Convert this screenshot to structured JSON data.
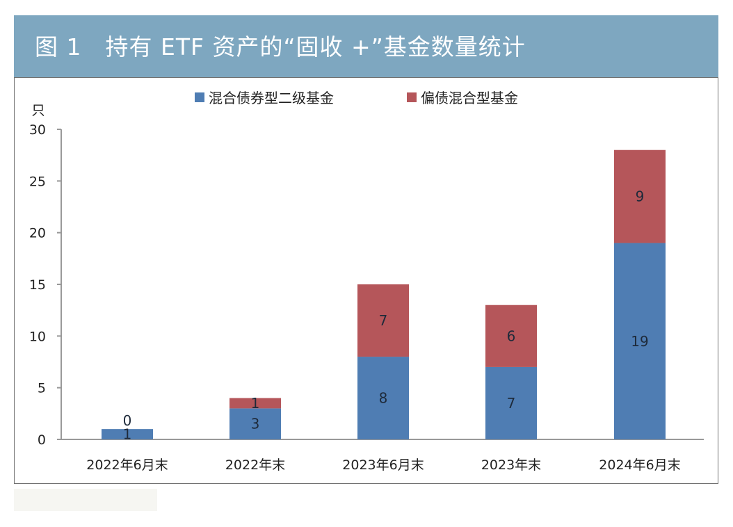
{
  "header": {
    "title": "图 1　持有 ETF 资产的“固收 +”基金数量统计"
  },
  "chart_data": {
    "type": "bar",
    "stacked": true,
    "title": "图 1　持有 ETF 资产的“固收 +”基金数量统计",
    "ylabel": "只",
    "xlabel": "",
    "ylim": [
      0,
      30
    ],
    "yticks": [
      0,
      5,
      10,
      15,
      20,
      25,
      30
    ],
    "categories": [
      "2022年6月末",
      "2022年末",
      "2023年6月末",
      "2023年末",
      "2024年6月末"
    ],
    "series": [
      {
        "name": "混合债券型二级基金",
        "color": "#4f7db3",
        "values": [
          1,
          3,
          8,
          7,
          19
        ]
      },
      {
        "name": "偏债混合型基金",
        "color": "#b5565a",
        "values": [
          0,
          1,
          7,
          6,
          9
        ]
      }
    ],
    "legend_position": "top-center",
    "grid": false
  }
}
